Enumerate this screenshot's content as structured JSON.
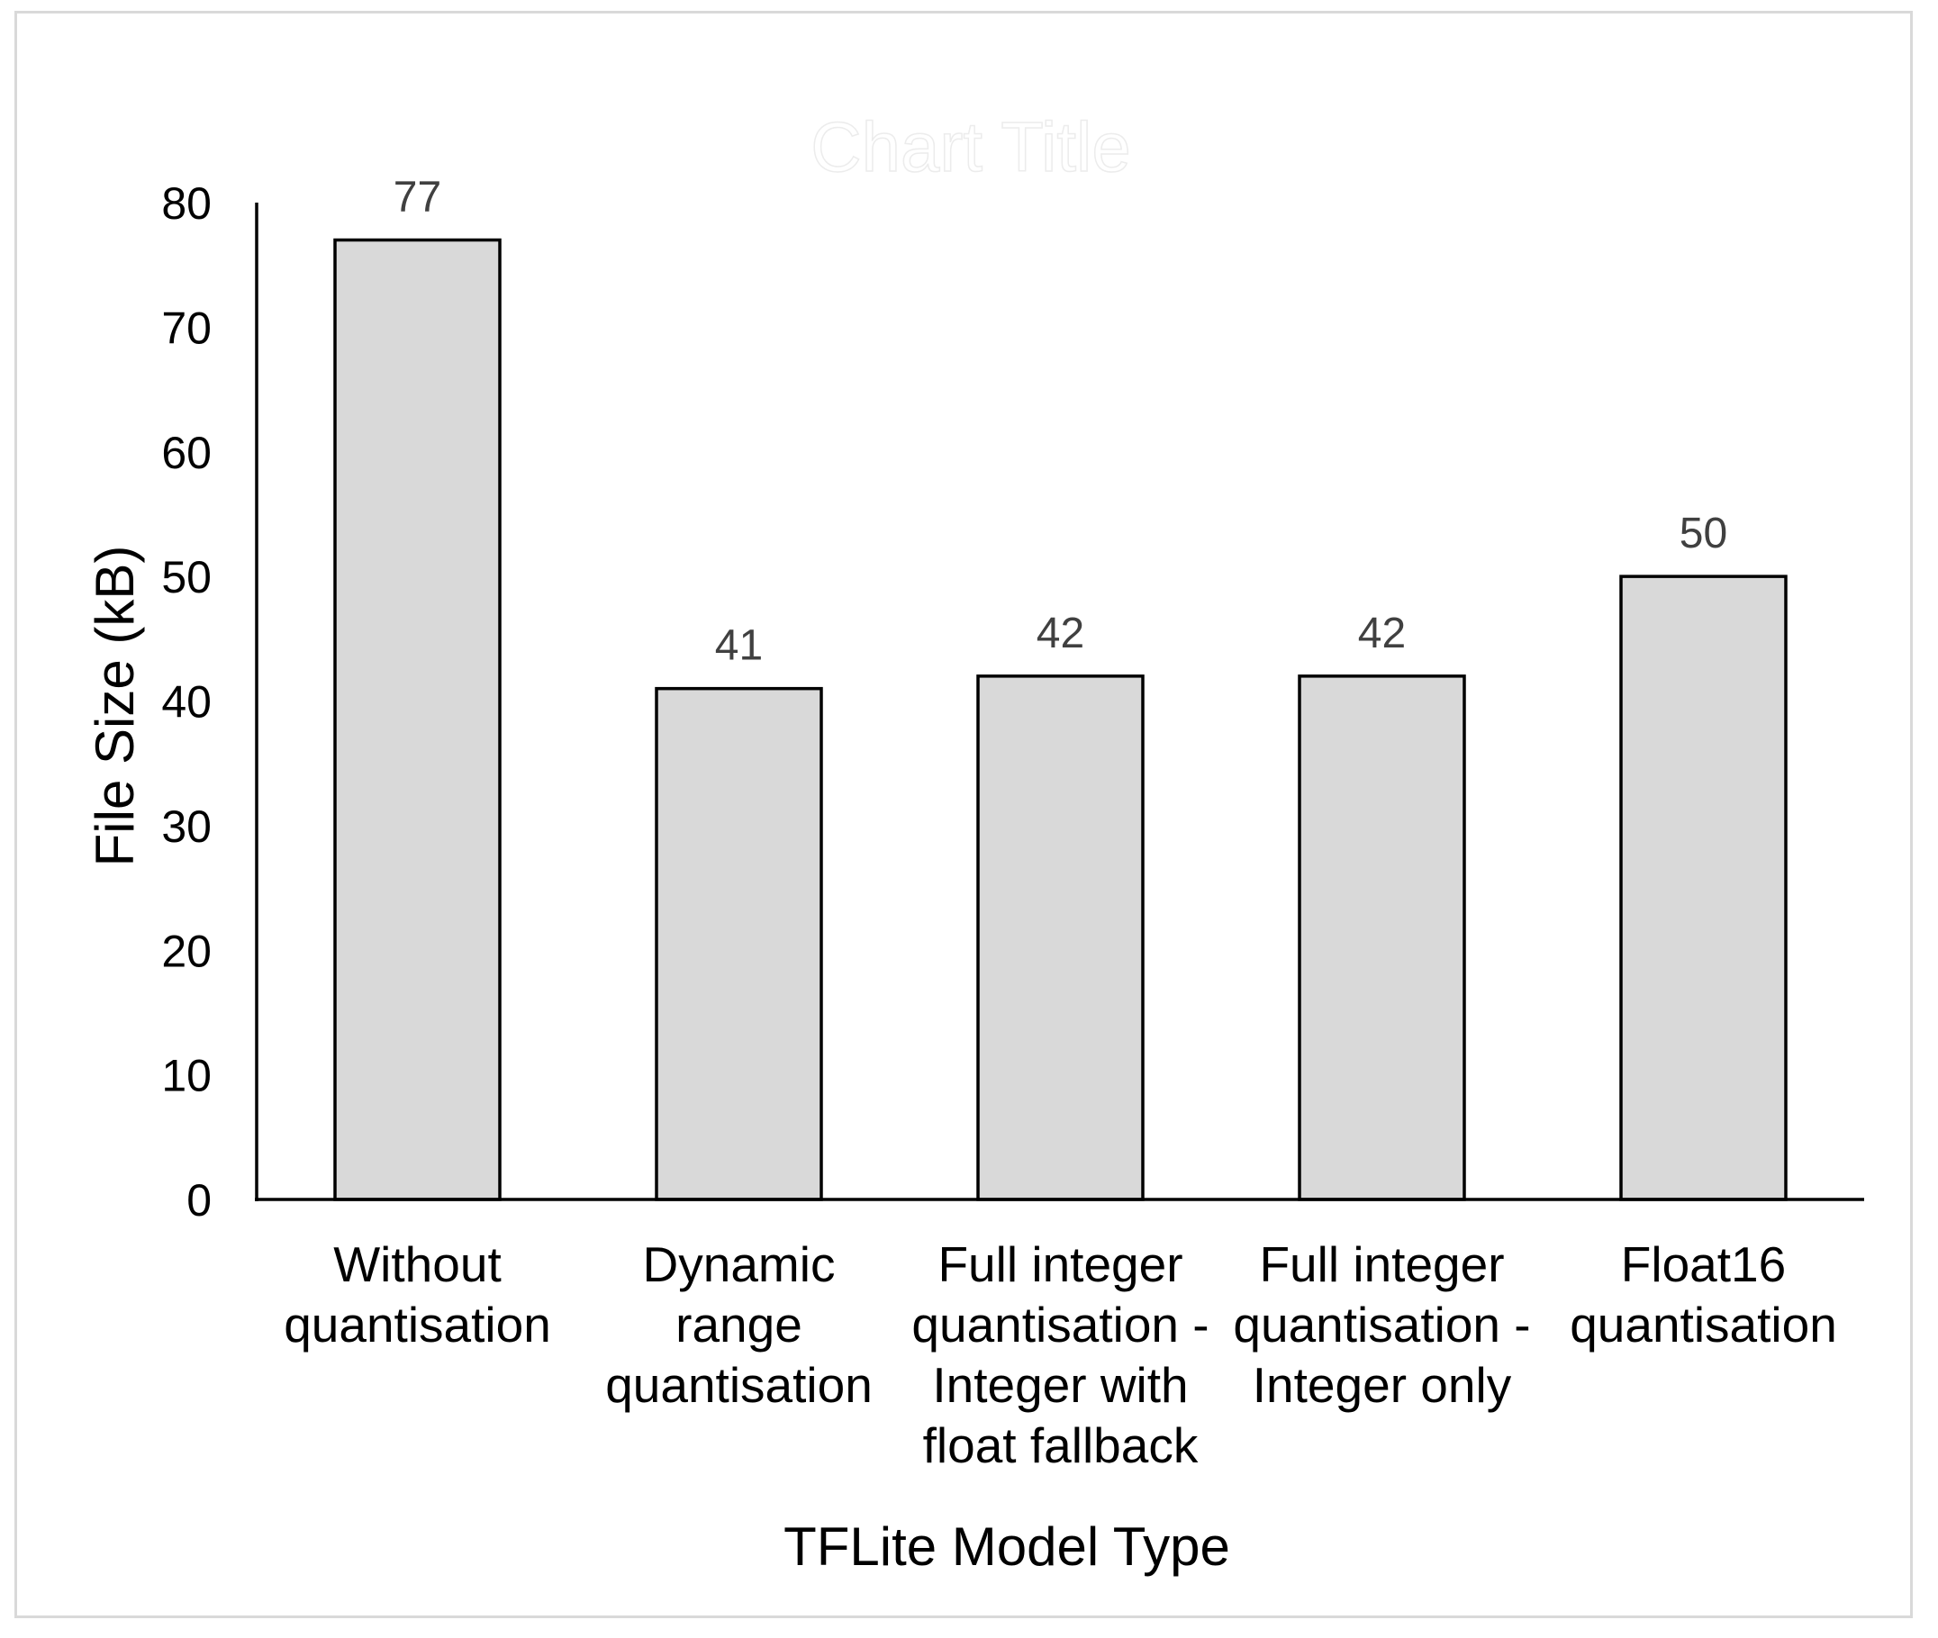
{
  "chart_data": {
    "type": "bar",
    "title": "Chart Title",
    "categories": [
      [
        "Without",
        "quantisation"
      ],
      [
        "Dynamic",
        "range",
        "quantisation"
      ],
      [
        "Full integer",
        "quantisation -",
        "Integer with",
        "float fallback"
      ],
      [
        "Full integer",
        "quantisation -",
        "Integer only"
      ],
      [
        "Float16",
        "quantisation"
      ]
    ],
    "values": [
      77,
      41,
      42,
      42,
      50
    ],
    "xlabel": "TFLite Model Type",
    "ylabel": "File Size (kB)",
    "ylim": [
      0,
      80
    ],
    "yticks": [
      0,
      10,
      20,
      30,
      40,
      50,
      60,
      70,
      80
    ],
    "grid": false,
    "legend": "none",
    "bar_fill": "#d9d9d9",
    "bar_stroke": "#000000",
    "data_label_color": "#404040"
  }
}
